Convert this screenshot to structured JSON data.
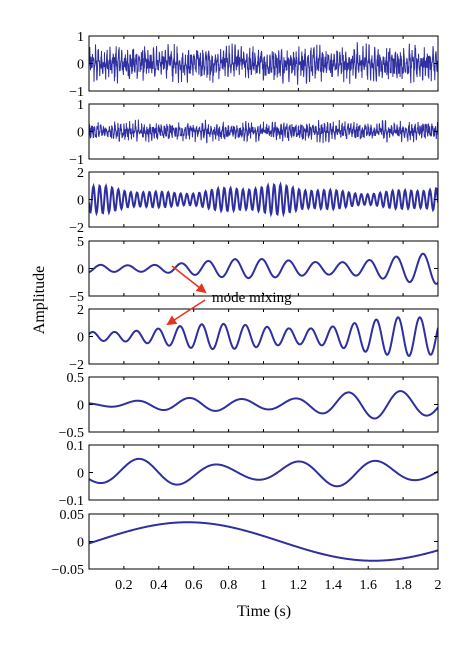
{
  "chart_data": {
    "type": "line",
    "ylabel": "Amplitude",
    "xlabel": "Time (s)",
    "xlim": [
      0,
      2
    ],
    "xticks": [
      "0.2",
      "0.4",
      "0.6",
      "0.8",
      "1",
      "1.2",
      "1.4",
      "1.6",
      "1.8",
      "2"
    ],
    "line_color": "#2e2fa0",
    "annotation": {
      "text": "mode mixing",
      "color": "#e8321e"
    },
    "panels": [
      {
        "ylim": [
          -1,
          1
        ],
        "yticks": [
          "1",
          "0",
          "−1"
        ],
        "signal": "noise",
        "amplitude": 0.55
      },
      {
        "ylim": [
          -1,
          1
        ],
        "yticks": [
          "1",
          "0",
          "−1"
        ],
        "signal": "noise",
        "amplitude": 0.3
      },
      {
        "ylim": [
          -2,
          2
        ],
        "yticks": [
          "2",
          "0",
          "−2"
        ],
        "signal": "oscillation",
        "amplitude": 1.1,
        "frequency_hz": 28
      },
      {
        "ylim": [
          -5,
          5
        ],
        "yticks": [
          "5",
          "0",
          "−5"
        ],
        "signal": "oscillation",
        "amplitude_start": 0.9,
        "amplitude_end": 2.8,
        "frequency_hz": 6.5
      },
      {
        "ylim": [
          -2,
          2
        ],
        "yticks": [
          "2",
          "0",
          "−2"
        ],
        "signal": "oscillation",
        "amplitude_start": 0.6,
        "amplitude_end": 1.5,
        "frequency_hz": 8
      },
      {
        "ylim": [
          -0.5,
          0.5
        ],
        "yticks": [
          "0.5",
          "0",
          "−0.5"
        ],
        "signal": "oscillation",
        "amplitude_start": 0.05,
        "amplitude_end": 0.3,
        "frequency_hz": 3.3
      },
      {
        "ylim": [
          -0.1,
          0.1
        ],
        "yticks": [
          "0.1",
          "0",
          "−0.1"
        ],
        "signal": "oscillation",
        "amplitude": 0.05,
        "frequency_hz": 2.2
      },
      {
        "ylim": [
          -0.05,
          0.05
        ],
        "yticks": [
          "0.05",
          "0",
          "−0.05"
        ],
        "signal": "sine",
        "amplitude": 0.035,
        "frequency_hz": 0.47
      }
    ]
  }
}
